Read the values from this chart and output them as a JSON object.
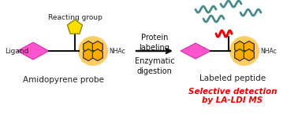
{
  "bg_color": "#ffffff",
  "ligand_color": "#ff55cc",
  "pentagon_color": "#ffdd00",
  "pentagon_edge": "#888800",
  "pyrene_color": "#ffaa00",
  "pyrene_bg": "#ffcc66",
  "pyrene_edge": "#333333",
  "line_color": "#111111",
  "arrow_color": "#111111",
  "wavy_gray_color": "#4a8a8a",
  "wavy_red_color": "#ee0000",
  "text_reacting_group": "Reacting group",
  "text_ligand": "Ligand",
  "text_amidopyrene": "Amidopyrene probe",
  "text_protein_labeling": "Protein\nlabeling",
  "text_enzymatic": "Enzymatic\ndigestion",
  "text_labeled_peptide": "Labeled peptide",
  "text_selective1": "Selective detection",
  "text_selective2": "by LA-LDI MS",
  "text_nhac": "NHAc",
  "fig_width": 3.78,
  "fig_height": 1.48,
  "dpi": 100
}
